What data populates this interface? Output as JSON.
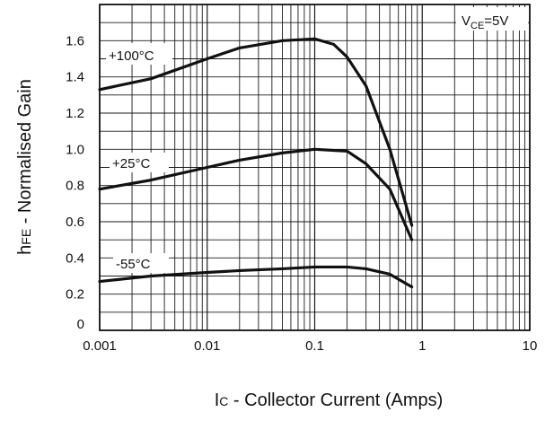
{
  "chart_data": {
    "type": "line",
    "title": "",
    "xlabel_prefix": "I",
    "xlabel_sub": "C",
    "xlabel_suffix": " - Collector Current (Amps)",
    "ylabel_prefix": "h",
    "ylabel_sub": "FE",
    "ylabel_suffix": " - Normalised Gain",
    "x_scale": "log",
    "xlim": [
      0.001,
      10
    ],
    "ylim": [
      0,
      1.8
    ],
    "grid": true,
    "x_ticks": [
      0.001,
      0.01,
      0.1,
      1,
      10
    ],
    "x_tick_labels": [
      "0.001",
      "0.01",
      "0.1",
      "1",
      "10"
    ],
    "y_ticks": [
      0,
      0.2,
      0.4,
      0.6,
      0.8,
      1.0,
      1.2,
      1.4,
      1.6
    ],
    "y_tick_labels": [
      "0",
      "0.2",
      "0.4",
      "0.6",
      "0.8",
      "1.0",
      "1.2",
      "1.4",
      "1.6"
    ],
    "annotation": {
      "prefix": "V",
      "sub": "CE",
      "suffix": "=5V"
    },
    "series": [
      {
        "name": "+100°C",
        "x": [
          0.001,
          0.003,
          0.01,
          0.02,
          0.05,
          0.1,
          0.15,
          0.2,
          0.3,
          0.5,
          0.8
        ],
        "y": [
          1.33,
          1.39,
          1.5,
          1.56,
          1.6,
          1.61,
          1.58,
          1.51,
          1.35,
          1.0,
          0.58
        ]
      },
      {
        "name": "+25°C",
        "x": [
          0.001,
          0.003,
          0.01,
          0.02,
          0.05,
          0.1,
          0.2,
          0.3,
          0.5,
          0.8
        ],
        "y": [
          0.78,
          0.83,
          0.9,
          0.94,
          0.98,
          1.0,
          0.99,
          0.92,
          0.78,
          0.5
        ]
      },
      {
        "name": "-55°C",
        "x": [
          0.001,
          0.003,
          0.01,
          0.02,
          0.05,
          0.1,
          0.2,
          0.3,
          0.5,
          0.8
        ],
        "y": [
          0.27,
          0.3,
          0.32,
          0.33,
          0.34,
          0.35,
          0.35,
          0.34,
          0.31,
          0.24
        ]
      }
    ]
  }
}
